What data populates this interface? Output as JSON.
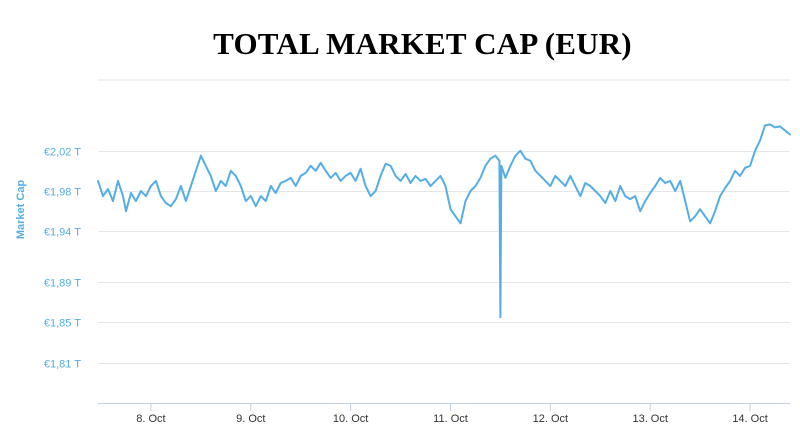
{
  "chart_data": {
    "type": "line",
    "title": "TOTAL MARKET CAP (EUR)",
    "ylabel": "Market Cap",
    "xlabel": "",
    "y_unit": "T EUR",
    "ylim": [
      1.77,
      2.09
    ],
    "y_ticks": [
      {
        "value": 2.02,
        "label": "€2,02 T"
      },
      {
        "value": 1.98,
        "label": "€1,98 T"
      },
      {
        "value": 1.94,
        "label": "€1,94 T"
      },
      {
        "value": 1.89,
        "label": "€1,89 T"
      },
      {
        "value": 1.85,
        "label": "€1,85 T"
      },
      {
        "value": 1.81,
        "label": "€1,81 T"
      }
    ],
    "xlim": [
      7.47,
      14.4
    ],
    "x_ticks": [
      {
        "value": 8,
        "label": "8. Oct"
      },
      {
        "value": 9,
        "label": "9. Oct"
      },
      {
        "value": 10,
        "label": "10. Oct"
      },
      {
        "value": 11,
        "label": "11. Oct"
      },
      {
        "value": 12,
        "label": "12. Oct"
      },
      {
        "value": 13,
        "label": "13. Oct"
      },
      {
        "value": 14,
        "label": "14. Oct"
      }
    ],
    "grid": true,
    "legend": "none",
    "series": [
      {
        "color": "#55aee3",
        "points": [
          [
            7.47,
            1.99
          ],
          [
            7.52,
            1.975
          ],
          [
            7.57,
            1.982
          ],
          [
            7.62,
            1.97
          ],
          [
            7.67,
            1.99
          ],
          [
            7.72,
            1.975
          ],
          [
            7.75,
            1.96
          ],
          [
            7.8,
            1.978
          ],
          [
            7.85,
            1.97
          ],
          [
            7.9,
            1.98
          ],
          [
            7.95,
            1.975
          ],
          [
            8.0,
            1.985
          ],
          [
            8.05,
            1.99
          ],
          [
            8.1,
            1.975
          ],
          [
            8.15,
            1.968
          ],
          [
            8.2,
            1.965
          ],
          [
            8.25,
            1.972
          ],
          [
            8.3,
            1.985
          ],
          [
            8.35,
            1.97
          ],
          [
            8.4,
            1.985
          ],
          [
            8.45,
            2.0
          ],
          [
            8.5,
            2.015
          ],
          [
            8.55,
            2.005
          ],
          [
            8.6,
            1.995
          ],
          [
            8.65,
            1.98
          ],
          [
            8.7,
            1.99
          ],
          [
            8.75,
            1.985
          ],
          [
            8.8,
            2.0
          ],
          [
            8.85,
            1.995
          ],
          [
            8.9,
            1.985
          ],
          [
            8.95,
            1.97
          ],
          [
            9.0,
            1.975
          ],
          [
            9.05,
            1.965
          ],
          [
            9.1,
            1.975
          ],
          [
            9.15,
            1.97
          ],
          [
            9.2,
            1.985
          ],
          [
            9.25,
            1.978
          ],
          [
            9.3,
            1.988
          ],
          [
            9.35,
            1.99
          ],
          [
            9.4,
            1.993
          ],
          [
            9.45,
            1.985
          ],
          [
            9.5,
            1.995
          ],
          [
            9.55,
            1.998
          ],
          [
            9.6,
            2.005
          ],
          [
            9.65,
            2.0
          ],
          [
            9.7,
            2.008
          ],
          [
            9.75,
            2.0
          ],
          [
            9.8,
            1.993
          ],
          [
            9.85,
            1.998
          ],
          [
            9.9,
            1.99
          ],
          [
            9.95,
            1.995
          ],
          [
            10.0,
            1.998
          ],
          [
            10.05,
            1.99
          ],
          [
            10.1,
            2.002
          ],
          [
            10.15,
            1.985
          ],
          [
            10.2,
            1.975
          ],
          [
            10.25,
            1.98
          ],
          [
            10.3,
            1.995
          ],
          [
            10.35,
            2.007
          ],
          [
            10.4,
            2.005
          ],
          [
            10.45,
            1.995
          ],
          [
            10.5,
            1.99
          ],
          [
            10.55,
            1.997
          ],
          [
            10.6,
            1.988
          ],
          [
            10.65,
            1.995
          ],
          [
            10.7,
            1.99
          ],
          [
            10.75,
            1.992
          ],
          [
            10.8,
            1.985
          ],
          [
            10.85,
            1.99
          ],
          [
            10.9,
            1.995
          ],
          [
            10.95,
            1.985
          ],
          [
            11.0,
            1.962
          ],
          [
            11.05,
            1.955
          ],
          [
            11.1,
            1.948
          ],
          [
            11.15,
            1.97
          ],
          [
            11.2,
            1.98
          ],
          [
            11.25,
            1.985
          ],
          [
            11.3,
            1.993
          ],
          [
            11.35,
            2.005
          ],
          [
            11.4,
            2.012
          ],
          [
            11.45,
            2.015
          ],
          [
            11.49,
            2.01
          ],
          [
            11.495,
            1.93
          ],
          [
            11.5,
            1.855
          ],
          [
            11.505,
            1.94
          ],
          [
            11.51,
            2.005
          ],
          [
            11.55,
            1.993
          ],
          [
            11.6,
            2.005
          ],
          [
            11.65,
            2.015
          ],
          [
            11.7,
            2.02
          ],
          [
            11.75,
            2.012
          ],
          [
            11.8,
            2.01
          ],
          [
            11.85,
            2.0
          ],
          [
            11.9,
            1.995
          ],
          [
            11.95,
            1.99
          ],
          [
            12.0,
            1.985
          ],
          [
            12.05,
            1.995
          ],
          [
            12.1,
            1.99
          ],
          [
            12.15,
            1.985
          ],
          [
            12.2,
            1.995
          ],
          [
            12.25,
            1.985
          ],
          [
            12.3,
            1.975
          ],
          [
            12.35,
            1.988
          ],
          [
            12.4,
            1.985
          ],
          [
            12.45,
            1.98
          ],
          [
            12.5,
            1.975
          ],
          [
            12.55,
            1.968
          ],
          [
            12.6,
            1.98
          ],
          [
            12.65,
            1.97
          ],
          [
            12.7,
            1.985
          ],
          [
            12.75,
            1.975
          ],
          [
            12.8,
            1.972
          ],
          [
            12.85,
            1.975
          ],
          [
            12.9,
            1.96
          ],
          [
            12.95,
            1.97
          ],
          [
            13.0,
            1.978
          ],
          [
            13.05,
            1.985
          ],
          [
            13.1,
            1.993
          ],
          [
            13.15,
            1.988
          ],
          [
            13.2,
            1.99
          ],
          [
            13.25,
            1.98
          ],
          [
            13.3,
            1.99
          ],
          [
            13.35,
            1.97
          ],
          [
            13.4,
            1.95
          ],
          [
            13.45,
            1.955
          ],
          [
            13.5,
            1.962
          ],
          [
            13.55,
            1.955
          ],
          [
            13.6,
            1.948
          ],
          [
            13.65,
            1.96
          ],
          [
            13.7,
            1.975
          ],
          [
            13.75,
            1.983
          ],
          [
            13.8,
            1.99
          ],
          [
            13.85,
            2.0
          ],
          [
            13.9,
            1.995
          ],
          [
            13.95,
            2.003
          ],
          [
            14.0,
            2.005
          ],
          [
            14.05,
            2.02
          ],
          [
            14.1,
            2.03
          ],
          [
            14.15,
            2.045
          ],
          [
            14.2,
            2.046
          ],
          [
            14.25,
            2.043
          ],
          [
            14.3,
            2.044
          ],
          [
            14.35,
            2.04
          ],
          [
            14.4,
            2.036
          ]
        ]
      }
    ]
  }
}
